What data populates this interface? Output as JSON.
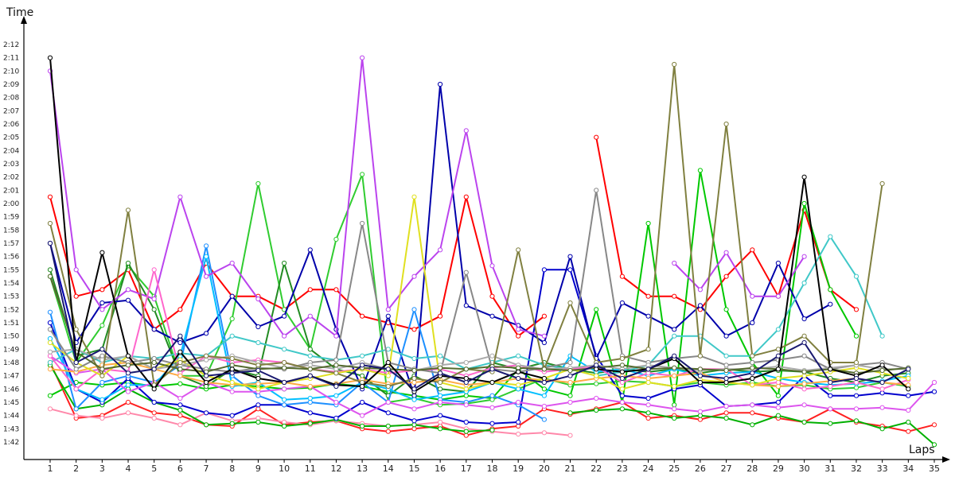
{
  "chart_data": {
    "type": "line",
    "title": "",
    "xlabel": "Laps",
    "ylabel": "Time",
    "x": [
      1,
      2,
      3,
      4,
      5,
      6,
      7,
      8,
      9,
      10,
      11,
      12,
      13,
      14,
      15,
      16,
      17,
      18,
      19,
      20,
      21,
      22,
      23,
      24,
      25,
      26,
      27,
      28,
      29,
      30,
      31,
      32,
      33,
      34,
      35
    ],
    "y_tick_labels": [
      "1:42",
      "1:43",
      "1:44",
      "1:45",
      "1:46",
      "1:47",
      "1:48",
      "1:49",
      "1:50",
      "1:51",
      "1:52",
      "1:53",
      "1:54",
      "1:55",
      "1:56",
      "1:57",
      "1:58",
      "1:59",
      "2:00",
      "2:01",
      "2:02",
      "2:03",
      "2:04",
      "2:05",
      "2:06",
      "2:07",
      "2:08",
      "2:09",
      "2:10",
      "2:11",
      "2:12"
    ],
    "ylim_seconds": [
      101,
      134
    ],
    "grid": false,
    "legend": "none",
    "series": [
      {
        "color": "#ff0000",
        "values": [
          120.5,
          113,
          113.5,
          115,
          110.5,
          112,
          115.5,
          113,
          113,
          112,
          113.5,
          113.5,
          111.5,
          111,
          110.5,
          111.5,
          120.5,
          113,
          110,
          111.5,
          null,
          125,
          114.5,
          113,
          113,
          112,
          114.5,
          116.5,
          113,
          119.5,
          113.5,
          112,
          null,
          null,
          null
        ]
      },
      {
        "color": "#ff2020",
        "values": [
          108,
          103.8,
          104,
          105,
          104.2,
          104,
          103.3,
          103.2,
          104.5,
          103.3,
          103.5,
          103.6,
          103,
          102.8,
          103,
          103.2,
          102.5,
          103,
          103.2,
          104.5,
          104.1,
          104.5,
          105,
          103.8,
          104,
          103.7,
          104.2,
          104.2,
          103.8,
          103.5,
          104.5,
          103.5,
          103.2,
          102.8,
          103.3
        ]
      },
      {
        "color": "#ff88aa",
        "values": [
          104.5,
          104,
          103.8,
          104.2,
          103.8,
          103.3,
          104.2,
          103.6,
          103.8,
          103.5,
          103.3,
          103.6,
          103.4,
          103.2,
          103.3,
          103.5,
          103,
          102.8,
          102.6,
          102.7,
          102.5,
          null,
          null,
          null,
          null,
          null,
          null,
          null,
          null,
          null,
          null,
          null,
          null,
          null,
          null
        ]
      },
      {
        "color": "#00b000",
        "values": [
          107.8,
          104.5,
          104.8,
          106,
          105,
          104.4,
          103.3,
          103.4,
          103.5,
          103.2,
          103.4,
          103.7,
          103.2,
          103.2,
          103.3,
          103,
          102.8,
          102.9,
          null,
          null,
          104.2,
          104.4,
          104.5,
          104.2,
          103.8,
          104,
          103.8,
          103.3,
          104,
          103.5,
          103.4,
          103.6,
          103,
          103.5,
          101.8
        ]
      },
      {
        "color": "#00c800",
        "values": [
          105.5,
          106.5,
          106.3,
          106.5,
          106.2,
          106.4,
          106,
          106.3,
          106.2,
          106,
          106.1,
          106.4,
          106.2,
          105.8,
          105.5,
          105.2,
          105.5,
          105.3,
          107.5,
          106,
          105.5,
          112,
          105,
          118.5,
          104.8,
          122.5,
          112,
          108,
          105.5,
          120,
          113.5,
          110,
          null,
          null,
          null
        ]
      },
      {
        "color": "#30cc30",
        "values": [
          114.5,
          108,
          110.8,
          115.3,
          113,
          107,
          107,
          111.3,
          121.5,
          112,
          109,
          117.3,
          122.2,
          105,
          105.3,
          104.8,
          104.9,
          105.2,
          106,
          106.8,
          106.3,
          106.4,
          106.6,
          106.5,
          106.2,
          106.5,
          106.3,
          106.5,
          106.2,
          106.3,
          106,
          106.1,
          106.5,
          106.2,
          null
        ]
      },
      {
        "color": "#228b22",
        "values": [
          115,
          108.5,
          109,
          115.5,
          112,
          107,
          106.2,
          107.5,
          107,
          115.5,
          109,
          107.5,
          107,
          105.5,
          107,
          106,
          105.8,
          108,
          107.5,
          108,
          107.5,
          107.2,
          107.5,
          107.3,
          107.5,
          107.2,
          107.5,
          107.3,
          107.4,
          107.3,
          106.8,
          106.5,
          107,
          107.2,
          null
        ]
      },
      {
        "color": "#0000cd",
        "values": [
          111,
          106,
          105,
          106.8,
          105,
          104.8,
          104.2,
          104,
          104.8,
          104.8,
          104.2,
          103.8,
          105,
          104.2,
          103.6,
          104,
          103.5,
          103.4,
          103.5,
          115,
          115,
          108.5,
          105.5,
          105.3,
          106,
          106.3,
          104.7,
          104.8,
          105,
          107,
          105.5,
          105.5,
          105.7,
          105.5,
          105.8
        ]
      },
      {
        "color": "#0000aa",
        "values": [
          117,
          109.5,
          112.5,
          112.7,
          110.5,
          109.5,
          110.2,
          113,
          110.7,
          111.5,
          116.5,
          110.5,
          106,
          111.5,
          105.5,
          129,
          112.3,
          111.5,
          110.8,
          109.5,
          116,
          108.3,
          112.5,
          111.5,
          110.5,
          112.3,
          110,
          111,
          115.5,
          111.3,
          112.4,
          null,
          null,
          null,
          null
        ]
      },
      {
        "color": "#1e90ff",
        "values": [
          111.8,
          104.5,
          106.5,
          107,
          106.5,
          107.8,
          116.8,
          107,
          105.5,
          104.8,
          105,
          104.8,
          106.5,
          105,
          112,
          105.2,
          105,
          105.5,
          104.8,
          103.7,
          null,
          null,
          null,
          null,
          null,
          null,
          null,
          null,
          null,
          null,
          null,
          null,
          null,
          null,
          null
        ]
      },
      {
        "color": "#00bfff",
        "values": [
          109.8,
          106,
          105.2,
          106.3,
          106.3,
          108.5,
          116,
          106.2,
          106.5,
          105.2,
          105.3,
          105.5,
          106.5,
          106,
          105.2,
          105.5,
          105.8,
          106.5,
          106,
          105.5,
          108.5,
          107.3,
          107.5,
          107,
          107.5,
          107,
          107.2,
          107.3,
          106.8,
          106.5,
          106.3,
          106.4,
          106.6,
          107,
          null
        ]
      },
      {
        "color": "#40c8c8",
        "values": [
          108,
          109,
          108,
          108.5,
          108.3,
          108.7,
          108.5,
          110,
          109.5,
          109,
          108.5,
          108.2,
          108.5,
          109,
          108.3,
          108.5,
          107.5,
          108,
          108.5,
          107.8,
          107.5,
          107,
          107.3,
          107.8,
          110,
          110,
          108.5,
          108.5,
          110.5,
          114,
          117.5,
          114.5,
          110,
          null,
          null
        ]
      },
      {
        "color": "#bb44ee",
        "values": [
          130,
          115,
          112,
          113.5,
          112.8,
          120.5,
          114.5,
          115.5,
          112.8,
          110,
          111.5,
          110,
          131,
          112,
          114.5,
          116.5,
          125.5,
          115.3,
          110.5,
          110,
          null,
          null,
          null,
          null,
          115.5,
          113.5,
          116.3,
          113,
          113,
          116,
          null,
          null,
          null,
          null,
          null
        ]
      },
      {
        "color": "#dd55ee",
        "values": [
          108.5,
          107.2,
          107.5,
          105.8,
          106.5,
          105.3,
          106.5,
          105.8,
          105.8,
          106,
          106.2,
          105,
          104,
          105,
          104.5,
          105,
          104.8,
          104.6,
          105,
          104.7,
          105,
          105.3,
          105,
          104.8,
          104.5,
          104.3,
          104.7,
          104.8,
          104.6,
          104.8,
          104.5,
          104.5,
          104.6,
          104.4,
          106.5
        ]
      },
      {
        "color": "#ff66cc",
        "values": [
          108.5,
          106,
          107.5,
          107.3,
          115,
          107.2,
          108.5,
          108,
          108.2,
          108,
          107.5,
          107.3,
          107.5,
          107.2,
          107.4,
          107.5,
          107,
          107.6,
          107.8,
          107.3,
          107.5,
          107.7,
          106.5,
          107.2,
          107,
          107.5,
          107.5,
          106.3,
          106.5,
          106,
          106.2,
          106.5,
          106,
          106.7,
          null
        ]
      },
      {
        "color": "#ffaa44",
        "values": [
          107.5,
          107.3,
          107.8,
          108,
          107.5,
          107,
          106.5,
          106.3,
          106.4,
          106.5,
          106.2,
          106.4,
          106.7,
          106.4,
          106.5,
          106.7,
          106.3,
          106.5,
          106.8,
          106.7,
          106.5,
          106.8,
          107,
          106.8,
          107,
          107.2,
          106.5,
          106.3,
          106.2,
          106.4,
          106.6,
          106.8,
          106.5,
          106.3,
          null
        ]
      },
      {
        "color": "#e0e020",
        "values": [
          109.5,
          108,
          107,
          108.5,
          107.5,
          108.2,
          107,
          106.5,
          106,
          106.5,
          106.8,
          107.2,
          107.5,
          107,
          120.5,
          106.5,
          106,
          106.5,
          106.3,
          106.8,
          107.5,
          107,
          106,
          106.5,
          106.2,
          106.7,
          106.5,
          106.3,
          106.8,
          107,
          107.3,
          107.6,
          107.2,
          106.8,
          null
        ]
      },
      {
        "color": "#888888",
        "values": [
          110.5,
          107.5,
          108.5,
          108,
          108.3,
          107.8,
          107.5,
          107.3,
          107.6,
          107.5,
          108,
          108.2,
          118.5,
          108,
          107.5,
          107.2,
          114.8,
          107.5,
          107.3,
          107.6,
          108,
          121,
          108.5,
          108,
          108.3,
          108.5,
          107.8,
          108,
          108.2,
          108.5,
          107.5,
          107.8,
          108,
          107.5,
          null
        ]
      },
      {
        "color": "#aaaaaa",
        "values": [
          108.8,
          109,
          108.2,
          108.5,
          107.5,
          107.8,
          108.2,
          108.5,
          108,
          107.6,
          107.8,
          107.5,
          108,
          107.5,
          107.4,
          107.8,
          108,
          108.5,
          107.8,
          107.5,
          107.6,
          107.8,
          107.5,
          107.8,
          107.6,
          107.4,
          107.5,
          107.5,
          107.7,
          107.4,
          107.6,
          107.8,
          107.5,
          107.5,
          null
        ]
      },
      {
        "color": "#808040",
        "values": [
          118.5,
          110.5,
          107,
          119.5,
          106.3,
          108,
          108.5,
          108.3,
          107.8,
          108,
          107.5,
          107.2,
          106.5,
          106.2,
          106.8,
          106.5,
          107.5,
          107.3,
          116.5,
          107.5,
          112.5,
          108,
          108.3,
          109,
          130.5,
          108.5,
          126,
          108.5,
          109,
          110,
          108,
          108,
          121.5,
          null,
          null
        ]
      },
      {
        "color": "#556b2f",
        "values": [
          114.5,
          108.8,
          107.5,
          107.8,
          108,
          107.5,
          107.3,
          107.8,
          107.5,
          107.6,
          107.5,
          107.8,
          107.6,
          107.5,
          107.4,
          107.6,
          107.5,
          107.7,
          107.6,
          107.5,
          107.4,
          107.6,
          107.8,
          107.5,
          107.6,
          107.5,
          107.4,
          107.6,
          107.5,
          107.3,
          107.5,
          107.2,
          107.4,
          107.6,
          null
        ]
      },
      {
        "color": "#000000",
        "values": [
          131,
          108,
          116.3,
          108.5,
          106,
          108.8,
          106.5,
          107.5,
          106.8,
          106.5,
          107,
          106.3,
          106.2,
          108,
          105.8,
          107,
          106.8,
          106.5,
          107.3,
          106.8,
          null,
          107.5,
          107.3,
          107.5,
          108.3,
          106.5,
          106.5,
          106.8,
          107.5,
          122,
          107.5,
          107,
          107.8,
          106,
          null
        ]
      },
      {
        "color": "#191970",
        "values": [
          117,
          108,
          109,
          107.2,
          107.5,
          110,
          107,
          107.2,
          107.4,
          106.5,
          107,
          106.2,
          107.8,
          107.5,
          106,
          107.2,
          106.5,
          107.5,
          106.8,
          106.5,
          107,
          107.8,
          106.8,
          107.5,
          108.5,
          107,
          106.8,
          107.2,
          108.5,
          109.5,
          106.5,
          106.8,
          106.5,
          107.5,
          null
        ]
      }
    ]
  }
}
